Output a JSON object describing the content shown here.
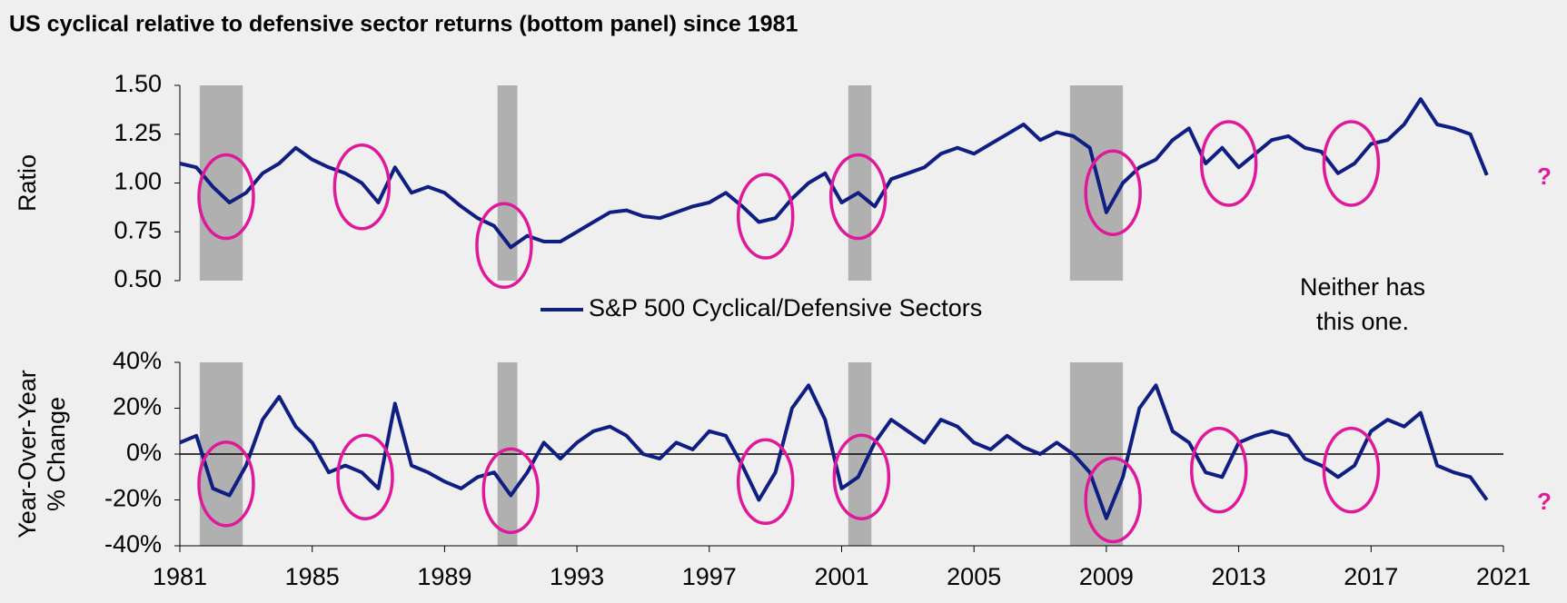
{
  "chart_data": [
    {
      "type": "line",
      "title": "US cyclical relative to defensive sector returns (bottom panel) since 1981",
      "ylabel": [
        "Ratio"
      ],
      "xlim": [
        1981,
        2021
      ],
      "ylim": [
        0.5,
        1.5
      ],
      "yticks": [
        {
          "value": 0.5,
          "label": "0.50"
        },
        {
          "value": 0.75,
          "label": "0.75"
        },
        {
          "value": 1,
          "label": "1.00"
        },
        {
          "value": 1.25,
          "label": "1.25"
        },
        {
          "value": 1.5,
          "label": "1.50"
        }
      ],
      "recessions": [
        [
          1981.6,
          1982.9
        ],
        [
          1990.6,
          1991.2
        ],
        [
          2001.2,
          2001.9
        ],
        [
          2007.9,
          2009.5
        ]
      ],
      "highlights": [
        {
          "x": 1982.4,
          "y": 0.93
        },
        {
          "x": 1986.5,
          "y": 0.98
        },
        {
          "x": 1990.8,
          "y": 0.68
        },
        {
          "x": 1998.7,
          "y": 0.83
        },
        {
          "x": 2001.5,
          "y": 0.93
        },
        {
          "x": 2009.2,
          "y": 0.95
        },
        {
          "x": 2012.7,
          "y": 1.1
        },
        {
          "x": 2016.4,
          "y": 1.1
        }
      ],
      "annotation": [
        "Neither has",
        "this one."
      ],
      "marker": "?",
      "x": [
        1981.0,
        1981.5,
        1982.0,
        1982.5,
        1983.0,
        1983.5,
        1984.0,
        1984.5,
        1985.0,
        1985.5,
        1986.0,
        1986.5,
        1987.0,
        1987.5,
        1988.0,
        1988.5,
        1989.0,
        1989.5,
        1990.0,
        1990.5,
        1991.0,
        1991.5,
        1992.0,
        1992.5,
        1993.0,
        1993.5,
        1994.0,
        1994.5,
        1995.0,
        1995.5,
        1996.0,
        1996.5,
        1997.0,
        1997.5,
        1998.0,
        1998.5,
        1999.0,
        1999.5,
        2000.0,
        2000.5,
        2001.0,
        2001.5,
        2002.0,
        2002.5,
        2003.0,
        2003.5,
        2004.0,
        2004.5,
        2005.0,
        2005.5,
        2006.0,
        2006.5,
        2007.0,
        2007.5,
        2008.0,
        2008.5,
        2009.0,
        2009.5,
        2010.0,
        2010.5,
        2011.0,
        2011.5,
        2012.0,
        2012.5,
        2013.0,
        2013.5,
        2014.0,
        2014.5,
        2015.0,
        2015.5,
        2016.0,
        2016.5,
        2017.0,
        2017.5,
        2018.0,
        2018.5,
        2019.0,
        2019.5,
        2020.0,
        2020.5
      ],
      "series": [
        {
          "name": "S&P 500 Cyclical/Defensive Sectors",
          "color": "#0f1e82",
          "values": [
            1.1,
            1.08,
            0.98,
            0.9,
            0.95,
            1.05,
            1.1,
            1.18,
            1.12,
            1.08,
            1.05,
            1.0,
            0.9,
            1.08,
            0.95,
            0.98,
            0.95,
            0.88,
            0.82,
            0.78,
            0.67,
            0.73,
            0.7,
            0.7,
            0.75,
            0.8,
            0.85,
            0.86,
            0.83,
            0.82,
            0.85,
            0.88,
            0.9,
            0.95,
            0.88,
            0.8,
            0.82,
            0.92,
            1.0,
            1.05,
            0.9,
            0.95,
            0.88,
            1.02,
            1.05,
            1.08,
            1.15,
            1.18,
            1.15,
            1.2,
            1.25,
            1.3,
            1.22,
            1.26,
            1.24,
            1.18,
            0.85,
            1.0,
            1.08,
            1.12,
            1.22,
            1.28,
            1.1,
            1.18,
            1.08,
            1.15,
            1.22,
            1.24,
            1.18,
            1.16,
            1.05,
            1.1,
            1.2,
            1.22,
            1.3,
            1.43,
            1.3,
            1.28,
            1.25,
            1.04
          ]
        }
      ]
    },
    {
      "type": "line",
      "ylabel": [
        "Year-Over-Year",
        "% Change"
      ],
      "xlim": [
        1981,
        2021
      ],
      "xticks": [
        1981,
        1985,
        1989,
        1993,
        1997,
        2001,
        2005,
        2009,
        2013,
        2017,
        2021
      ],
      "ylim": [
        -40,
        40
      ],
      "yticks": [
        {
          "value": -40,
          "label": "-40%"
        },
        {
          "value": -20,
          "label": "-20%"
        },
        {
          "value": 0,
          "label": "0%"
        },
        {
          "value": 20,
          "label": "20%"
        },
        {
          "value": 40,
          "label": "40%"
        }
      ],
      "baseline": 0,
      "recessions": [
        [
          1981.6,
          1982.9
        ],
        [
          1990.6,
          1991.2
        ],
        [
          2001.2,
          2001.9
        ],
        [
          2007.9,
          2009.5
        ]
      ],
      "highlights": [
        {
          "x": 1982.4,
          "y": -13
        },
        {
          "x": 1986.6,
          "y": -10
        },
        {
          "x": 1991.0,
          "y": -16
        },
        {
          "x": 1998.7,
          "y": -12
        },
        {
          "x": 2001.6,
          "y": -10
        },
        {
          "x": 2009.2,
          "y": -20
        },
        {
          "x": 2012.4,
          "y": -7
        },
        {
          "x": 2016.4,
          "y": -7
        }
      ],
      "marker": "?",
      "x": [
        1981.0,
        1981.5,
        1982.0,
        1982.5,
        1983.0,
        1983.5,
        1984.0,
        1984.5,
        1985.0,
        1985.5,
        1986.0,
        1986.5,
        1987.0,
        1987.5,
        1988.0,
        1988.5,
        1989.0,
        1989.5,
        1990.0,
        1990.5,
        1991.0,
        1991.5,
        1992.0,
        1992.5,
        1993.0,
        1993.5,
        1994.0,
        1994.5,
        1995.0,
        1995.5,
        1996.0,
        1996.5,
        1997.0,
        1997.5,
        1998.0,
        1998.5,
        1999.0,
        1999.5,
        2000.0,
        2000.5,
        2001.0,
        2001.5,
        2002.0,
        2002.5,
        2003.0,
        2003.5,
        2004.0,
        2004.5,
        2005.0,
        2005.5,
        2006.0,
        2006.5,
        2007.0,
        2007.5,
        2008.0,
        2008.5,
        2009.0,
        2009.5,
        2010.0,
        2010.5,
        2011.0,
        2011.5,
        2012.0,
        2012.5,
        2013.0,
        2013.5,
        2014.0,
        2014.5,
        2015.0,
        2015.5,
        2016.0,
        2016.5,
        2017.0,
        2017.5,
        2018.0,
        2018.5,
        2019.0,
        2019.5,
        2020.0,
        2020.5
      ],
      "series": [
        {
          "color": "#0f1e82",
          "values": [
            5,
            8,
            -15,
            -18,
            -5,
            15,
            25,
            12,
            5,
            -8,
            -5,
            -8,
            -15,
            22,
            -5,
            -8,
            -12,
            -15,
            -10,
            -8,
            -18,
            -8,
            5,
            -2,
            5,
            10,
            12,
            8,
            0,
            -2,
            5,
            2,
            10,
            8,
            -5,
            -20,
            -8,
            20,
            30,
            15,
            -15,
            -10,
            5,
            15,
            10,
            5,
            15,
            12,
            5,
            2,
            8,
            3,
            0,
            5,
            0,
            -8,
            -28,
            -10,
            20,
            30,
            10,
            5,
            -8,
            -10,
            5,
            8,
            10,
            8,
            -2,
            -5,
            -10,
            -5,
            10,
            15,
            12,
            18,
            -5,
            -8,
            -10,
            -20
          ]
        }
      ]
    }
  ]
}
